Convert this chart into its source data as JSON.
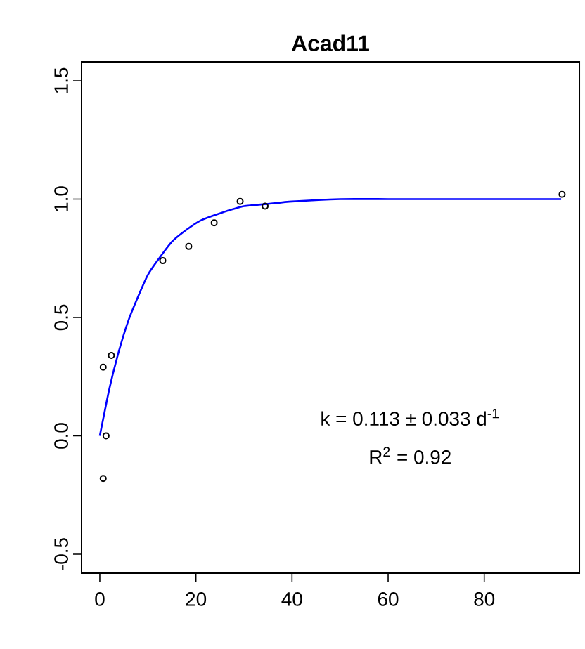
{
  "chart_data": {
    "type": "scatter",
    "title": "Acad11",
    "series": [
      {
        "color": "#000000",
        "marker": "circle",
        "x": [
          0.7,
          2.4,
          1.3,
          0.7,
          13.1,
          18.5,
          23.8,
          29.2,
          34.4,
          96.2
        ],
        "values": [
          0.29,
          0.34,
          0.0,
          -0.18,
          0.74,
          0.8,
          0.9,
          0.99,
          0.97,
          1.02
        ]
      },
      {
        "type": "line",
        "color": "#0000ff",
        "marker": "none",
        "x": [
          0,
          2,
          4,
          6,
          8,
          10,
          12,
          15,
          18,
          21,
          25,
          30,
          35,
          40,
          50,
          60,
          70,
          80,
          96
        ],
        "values": [
          0,
          0.2,
          0.36,
          0.49,
          0.59,
          0.68,
          0.74,
          0.82,
          0.87,
          0.91,
          0.94,
          0.97,
          0.98,
          0.99,
          1.0,
          1.0,
          1.0,
          1.0,
          1.0
        ]
      }
    ],
    "xlim": [
      -3.8,
      99.8
    ],
    "ylim": [
      -0.58,
      1.58
    ],
    "xticks": [
      0,
      20,
      40,
      60,
      80
    ],
    "yticks": [
      -0.5,
      {
        "value": 0,
        "label": "0.0"
      },
      0.5,
      {
        "value": 1,
        "label": "1.0"
      },
      1.5
    ],
    "annotations": [
      "k = 0.113 ± 0.033 d$^{-1}$",
      "R$^{2}$ = 0.92"
    ],
    "grid": false
  }
}
